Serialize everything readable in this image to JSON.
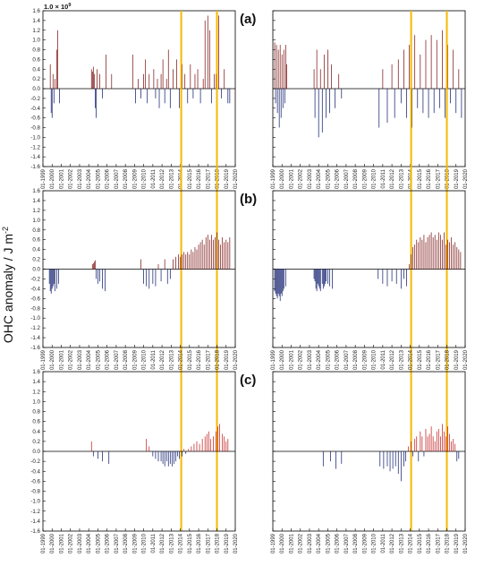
{
  "figure": {
    "ylabel_main": "OHC anomaly / J m",
    "ylabel_sup": "-2",
    "scale_base": "1.0 × 10",
    "scale_exp": "9",
    "colors": {
      "positive": "#7a1010",
      "negative": "#0d1a6b",
      "positive_c": "#c01a1a",
      "vline": "#f5b800",
      "axis": "#000000"
    },
    "vlines": [
      2014.1,
      2018.0
    ]
  },
  "chart_data": [
    {
      "id": "a-left",
      "panel": "(a)",
      "type": "bar",
      "ylim": [
        -1.6,
        1.6
      ],
      "yticks": [
        "1.6",
        "1.4",
        "1.2",
        "1.0",
        "0.8",
        "0.6",
        "0.4",
        "0.2",
        "0.0",
        "-0.2",
        "-0.4",
        "-0.6",
        "-0.8",
        "-1.0",
        "-1.2",
        "-1.4",
        "-1.6"
      ],
      "xticks": [
        "01-1999",
        "01-2000",
        "01-2001",
        "01-2002",
        "01-2003",
        "01-2004",
        "01-2005",
        "01-2006",
        "01-2007",
        "01-2008",
        "01-2009",
        "01-2010",
        "01-2011",
        "01-2012",
        "01-2013",
        "01-2014",
        "01-2015",
        "01-2016",
        "01-2017",
        "01-2018",
        "01-2019",
        "01-2020"
      ],
      "x": [
        1999.8,
        1999.9,
        2000.0,
        2000.1,
        2000.2,
        2000.3,
        2000.5,
        2000.6,
        2000.8,
        2004.3,
        2004.4,
        2004.5,
        2004.6,
        2004.7,
        2004.8,
        2004.9,
        2005.2,
        2005.5,
        2005.9,
        2006.5,
        2008.8,
        2009.1,
        2009.4,
        2009.7,
        2010.0,
        2010.2,
        2010.4,
        2010.6,
        2011.1,
        2011.3,
        2011.5,
        2011.7,
        2011.9,
        2012.1,
        2012.3,
        2012.5,
        2012.7,
        2012.9,
        2013.2,
        2013.6,
        2013.9,
        2014.2,
        2014.5,
        2014.8,
        2015.1,
        2015.4,
        2015.6,
        2015.9,
        2016.2,
        2016.5,
        2016.7,
        2017.0,
        2017.2,
        2017.4,
        2017.7,
        2017.9,
        2018.2,
        2018.5,
        2018.8,
        2019.2,
        2019.4
      ],
      "values": [
        0.5,
        -0.5,
        -0.6,
        0.3,
        -0.3,
        0.2,
        0.8,
        1.2,
        -0.3,
        0.4,
        0.35,
        0.45,
        0.3,
        -0.4,
        -0.6,
        0.4,
        0.3,
        -0.2,
        0.7,
        0.3,
        0.7,
        -0.3,
        0.2,
        -0.2,
        0.3,
        0.6,
        -0.3,
        0.3,
        0.4,
        -0.2,
        0.2,
        -0.4,
        0.3,
        0.6,
        -0.3,
        0.2,
        0.8,
        -0.4,
        0.4,
        0.6,
        -0.4,
        0.5,
        0.3,
        -0.3,
        0.5,
        -0.2,
        0.3,
        0.4,
        -0.3,
        0.2,
        1.4,
        1.5,
        1.2,
        -0.3,
        0.3,
        0.3,
        1.5,
        -0.2,
        0.4,
        -0.3,
        -0.3
      ]
    },
    {
      "id": "a-right",
      "panel": "",
      "type": "bar",
      "ylim": [
        -1.6,
        1.6
      ],
      "xticks": [
        "01-1999",
        "01-2000",
        "01-2001",
        "01-2002",
        "01-2003",
        "01-2004",
        "01-2005",
        "01-2006",
        "01-2007",
        "01-2008",
        "01-2009",
        "01-2010",
        "01-2011",
        "01-2012",
        "01-2013",
        "01-2014",
        "01-2015",
        "01-2016",
        "01-2017",
        "01-2018",
        "01-2019",
        "01-2020"
      ],
      "x": [
        1999.2,
        1999.3,
        1999.4,
        1999.5,
        1999.6,
        1999.7,
        1999.8,
        1999.9,
        2000.0,
        2000.1,
        2000.2,
        2000.3,
        2000.4,
        2000.5,
        2003.5,
        2003.6,
        2003.8,
        2004.0,
        2004.2,
        2004.4,
        2004.6,
        2004.8,
        2005.0,
        2005.2,
        2005.4,
        2005.8,
        2006.2,
        2006.5,
        2010.6,
        2011.0,
        2011.5,
        2012.0,
        2012.3,
        2012.7,
        2013.0,
        2013.3,
        2013.6,
        2013.9,
        2014.2,
        2014.5,
        2014.8,
        2015.1,
        2015.4,
        2015.7,
        2016.0,
        2016.3,
        2016.6,
        2016.9,
        2017.2,
        2017.5,
        2017.8,
        2018.1,
        2018.4,
        2018.7,
        2019.0,
        2019.3,
        2019.6
      ],
      "values": [
        0.95,
        -0.3,
        0.9,
        -0.5,
        0.8,
        -0.8,
        0.9,
        -0.6,
        0.7,
        -0.4,
        0.8,
        -0.3,
        0.9,
        0.5,
        0.4,
        -0.6,
        0.8,
        -1.0,
        0.4,
        -0.9,
        0.7,
        -0.6,
        0.8,
        -0.5,
        0.5,
        -0.4,
        0.3,
        -0.2,
        -0.8,
        0.4,
        -0.7,
        0.5,
        -0.6,
        0.6,
        -0.3,
        0.8,
        -0.6,
        0.9,
        -0.8,
        1.1,
        -0.4,
        0.7,
        -0.5,
        1.0,
        -0.6,
        1.1,
        -0.5,
        1.0,
        -0.4,
        1.2,
        -0.6,
        0.9,
        -0.3,
        0.8,
        -0.5,
        0.4,
        -0.6
      ]
    },
    {
      "id": "b-left",
      "panel": "(b)",
      "type": "bar",
      "ylim": [
        -1.6,
        1.6
      ],
      "yticks": [
        "1.6",
        "1.4",
        "1.2",
        "1.0",
        "0.8",
        "0.6",
        "0.4",
        "0.2",
        "0.0",
        "-0.2",
        "-0.4",
        "-0.6",
        "-0.8",
        "-1.0",
        "-1.2",
        "-1.4",
        "-1.6"
      ],
      "xticks": [
        "01-1999",
        "01-2000",
        "01-2001",
        "01-2002",
        "01-2003",
        "01-2004",
        "01-2005",
        "01-2006",
        "01-2007",
        "01-2008",
        "01-2009",
        "01-2010",
        "01-2011",
        "01-2012",
        "01-2013",
        "01-2014",
        "01-2015",
        "01-2016",
        "01-2017",
        "01-2018",
        "01-2019",
        "01-2020"
      ],
      "x": [
        1999.7,
        1999.8,
        1999.9,
        2000.0,
        2000.1,
        2000.2,
        2000.3,
        2000.5,
        2000.7,
        2004.4,
        2004.5,
        2004.6,
        2004.7,
        2004.8,
        2005.0,
        2005.2,
        2005.5,
        2005.8,
        2009.7,
        2010.0,
        2010.3,
        2010.6,
        2011.0,
        2011.3,
        2011.6,
        2011.9,
        2012.3,
        2012.6,
        2012.9,
        2013.2,
        2013.5,
        2013.8,
        2014.0,
        2014.2,
        2014.4,
        2014.6,
        2014.8,
        2015.0,
        2015.2,
        2015.4,
        2015.6,
        2015.8,
        2016.0,
        2016.2,
        2016.4,
        2016.6,
        2016.8,
        2017.0,
        2017.2,
        2017.4,
        2017.6,
        2017.8,
        2018.0,
        2018.2,
        2018.4,
        2018.6,
        2018.8,
        2019.0,
        2019.2,
        2019.4
      ],
      "values": [
        -0.3,
        -0.45,
        -0.5,
        -0.4,
        -0.35,
        -0.3,
        -0.45,
        -0.4,
        -0.3,
        0.1,
        0.12,
        0.15,
        0.18,
        -0.2,
        -0.3,
        -0.25,
        -0.4,
        -0.45,
        0.2,
        -0.3,
        -0.35,
        -0.4,
        -0.3,
        -0.35,
        0.1,
        -0.25,
        0.2,
        -0.3,
        -0.2,
        0.2,
        0.25,
        0.3,
        0.25,
        0.3,
        0.35,
        0.3,
        0.35,
        0.3,
        0.4,
        0.35,
        0.45,
        0.4,
        0.5,
        0.55,
        0.6,
        0.5,
        0.65,
        0.7,
        0.6,
        0.7,
        0.6,
        0.65,
        0.75,
        0.6,
        0.5,
        0.65,
        0.55,
        0.6,
        0.55,
        0.65
      ]
    },
    {
      "id": "b-right",
      "panel": "",
      "type": "bar",
      "ylim": [
        -1.6,
        1.6
      ],
      "xticks": [
        "01-1999",
        "01-2000",
        "01-2001",
        "01-2002",
        "01-2003",
        "01-2004",
        "01-2005",
        "01-2006",
        "01-2007",
        "01-2008",
        "01-2009",
        "01-2010",
        "01-2011",
        "01-2012",
        "01-2013",
        "01-2014",
        "01-2015",
        "01-2016",
        "01-2017",
        "01-2018",
        "01-2019",
        "01-2020"
      ],
      "x": [
        1999.2,
        1999.3,
        1999.4,
        1999.5,
        1999.6,
        1999.7,
        1999.8,
        1999.9,
        2000.0,
        2000.1,
        2000.2,
        2000.4,
        2003.5,
        2003.6,
        2003.7,
        2003.8,
        2003.9,
        2004.0,
        2004.1,
        2004.2,
        2004.4,
        2004.5,
        2004.6,
        2004.7,
        2004.8,
        2005.0,
        2005.2,
        2005.5,
        2010.5,
        2011.0,
        2011.5,
        2012.0,
        2012.5,
        2013.0,
        2013.3,
        2013.6,
        2013.9,
        2014.1,
        2014.3,
        2014.5,
        2014.7,
        2014.9,
        2015.1,
        2015.3,
        2015.5,
        2015.7,
        2015.9,
        2016.1,
        2016.3,
        2016.5,
        2016.7,
        2016.9,
        2017.1,
        2017.3,
        2017.5,
        2017.7,
        2017.9,
        2018.1,
        2018.3,
        2018.5,
        2018.7,
        2018.9,
        2019.1,
        2019.3,
        2019.5
      ],
      "values": [
        -0.45,
        -0.5,
        -0.55,
        -0.6,
        -0.5,
        -0.55,
        -0.65,
        -0.5,
        -0.55,
        -0.45,
        -0.4,
        -0.35,
        -0.2,
        -0.25,
        -0.4,
        -0.45,
        -0.3,
        -0.35,
        -0.4,
        -0.45,
        -0.3,
        -0.4,
        -0.35,
        -0.3,
        -0.25,
        -0.3,
        -0.35,
        -0.4,
        -0.2,
        -0.3,
        -0.35,
        -0.25,
        -0.3,
        -0.4,
        -0.2,
        -0.35,
        0.1,
        0.3,
        0.45,
        0.5,
        0.6,
        0.55,
        0.65,
        0.6,
        0.7,
        0.55,
        0.65,
        0.7,
        0.75,
        0.65,
        0.7,
        0.6,
        0.75,
        0.7,
        0.6,
        0.75,
        0.5,
        0.6,
        0.55,
        0.65,
        0.5,
        0.55,
        0.45,
        0.4,
        0.35
      ]
    },
    {
      "id": "c-left",
      "panel": "(c)",
      "type": "bar",
      "ylim": [
        -1.6,
        1.6
      ],
      "yticks": [
        "1.6",
        "1.4",
        "1.2",
        "1.0",
        "0.8",
        "0.6",
        "0.4",
        "0.2",
        "0.0",
        "-0.2",
        "-0.4",
        "-0.6",
        "-0.8",
        "-1.0",
        "-1.2",
        "-1.4",
        "-1.6"
      ],
      "xticks": [
        "01-1999",
        "01-2000",
        "01-2001",
        "01-2002",
        "01-2003",
        "01-2004",
        "01-2005",
        "01-2006",
        "01-2007",
        "01-2008",
        "01-2009",
        "01-2010",
        "01-2011",
        "01-2012",
        "01-2013",
        "01-2014",
        "01-2015",
        "01-2016",
        "01-2017",
        "01-2018",
        "01-2019",
        "01-2020"
      ],
      "x": [
        2004.3,
        2004.5,
        2005.0,
        2005.5,
        2006.2,
        2010.3,
        2010.6,
        2011.0,
        2011.3,
        2011.6,
        2011.9,
        2012.1,
        2012.3,
        2012.5,
        2012.7,
        2012.9,
        2013.1,
        2013.3,
        2013.5,
        2013.7,
        2013.9,
        2014.2,
        2014.4,
        2014.6,
        2014.9,
        2015.2,
        2015.5,
        2015.8,
        2016.1,
        2016.4,
        2016.7,
        2016.9,
        2017.1,
        2017.3,
        2017.6,
        2017.9,
        2018.1,
        2018.3,
        2018.6,
        2018.8,
        2019.0,
        2019.2
      ],
      "values": [
        0.2,
        -0.1,
        -0.15,
        -0.2,
        -0.25,
        0.25,
        0.1,
        -0.1,
        -0.15,
        -0.2,
        -0.2,
        -0.25,
        -0.3,
        -0.2,
        -0.3,
        -0.25,
        -0.3,
        -0.25,
        -0.2,
        -0.1,
        -0.15,
        -0.1,
        0.05,
        -0.05,
        0.05,
        0.1,
        0.15,
        0.2,
        0.15,
        0.25,
        0.3,
        0.35,
        0.4,
        0.25,
        0.3,
        0.4,
        0.5,
        0.55,
        0.35,
        0.3,
        0.2,
        0.25
      ]
    },
    {
      "id": "c-right",
      "panel": "",
      "type": "bar",
      "ylim": [
        -1.6,
        1.6
      ],
      "xticks": [
        "01-1999",
        "01-2000",
        "01-2001",
        "01-2002",
        "01-2003",
        "01-2004",
        "01-2005",
        "01-2006",
        "01-2007",
        "01-2008",
        "01-2009",
        "01-2010",
        "01-2011",
        "01-2012",
        "01-2013",
        "01-2014",
        "01-2015",
        "01-2016",
        "01-2017",
        "01-2018",
        "01-2019",
        "01-2020"
      ],
      "x": [
        2004.5,
        2005.3,
        2005.9,
        2006.5,
        2010.7,
        2011.1,
        2011.5,
        2011.8,
        2012.1,
        2012.4,
        2012.7,
        2013.0,
        2013.3,
        2013.5,
        2013.8,
        2014.1,
        2014.3,
        2014.5,
        2014.7,
        2014.9,
        2015.1,
        2015.3,
        2015.5,
        2015.7,
        2015.9,
        2016.1,
        2016.3,
        2016.5,
        2016.7,
        2016.9,
        2017.1,
        2017.3,
        2017.5,
        2017.7,
        2017.9,
        2018.1,
        2018.3,
        2018.5,
        2018.7,
        2018.9,
        2019.1,
        2019.3
      ],
      "values": [
        -0.3,
        -0.2,
        -0.35,
        -0.25,
        -0.3,
        -0.35,
        -0.3,
        -0.4,
        -0.35,
        -0.3,
        -0.45,
        -0.6,
        -0.3,
        -0.2,
        0.1,
        0.2,
        -0.1,
        0.25,
        0.3,
        -0.2,
        0.4,
        0.3,
        -0.1,
        0.45,
        0.3,
        0.35,
        0.5,
        0.3,
        0.2,
        0.4,
        0.45,
        0.3,
        0.55,
        0.4,
        0.3,
        0.5,
        0.35,
        0.2,
        0.25,
        0.15,
        -0.2,
        -0.15
      ]
    }
  ]
}
